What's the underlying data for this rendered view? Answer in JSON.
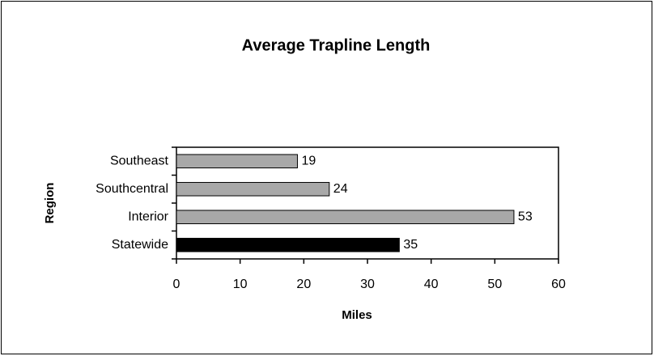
{
  "chart_data": {
    "type": "barh",
    "title": "Average Trapline Length",
    "categories": [
      "Southeast",
      "Southcentral",
      "Interior",
      "Statewide"
    ],
    "values": [
      19,
      24,
      53,
      35
    ],
    "colors": [
      "#a8a8a8",
      "#a8a8a8",
      "#a8a8a8",
      "#000000"
    ],
    "xlabel": "Miles",
    "ylabel": "Region",
    "xlim": [
      0,
      60
    ],
    "xticks": [
      0,
      10,
      20,
      30,
      40,
      50,
      60
    ],
    "grid": false
  }
}
